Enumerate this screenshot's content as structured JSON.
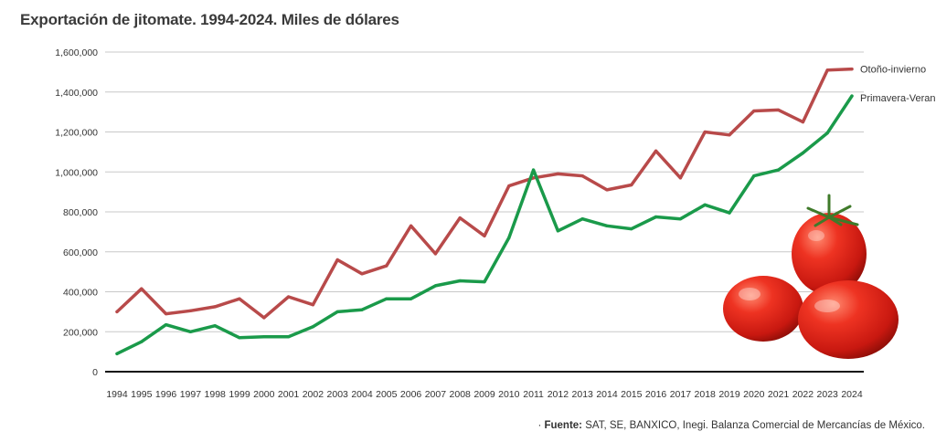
{
  "title": "Exportación de jitomate. 1994-2024. Miles de dólares",
  "source": {
    "bullet": "·",
    "label": "Fuente:",
    "text": "SAT, SE, BANXICO, Inegi. Balanza Comercial de Mercancías de México."
  },
  "chart_data": {
    "type": "line",
    "title": "Exportación de jitomate. 1994-2024. Miles de dólares",
    "x": [
      "1994",
      "1995",
      "1996",
      "1997",
      "1998",
      "1999",
      "2000",
      "2001",
      "2002",
      "2003",
      "2004",
      "2005",
      "2006",
      "2007",
      "2008",
      "2009",
      "2010",
      "2011",
      "2012",
      "2013",
      "2014",
      "2015",
      "2016",
      "2017",
      "2018",
      "2019",
      "2020",
      "2021",
      "2022",
      "2023",
      "2024"
    ],
    "ylim": [
      0,
      1600000
    ],
    "yticks": [
      0,
      200000,
      400000,
      600000,
      800000,
      1000000,
      1200000,
      1400000,
      1600000
    ],
    "ytick_labels": [
      "0",
      "200,000",
      "400,000",
      "600,000",
      "800,000",
      "1,000,000",
      "1,200,000",
      "1,400,000",
      "1,600,000"
    ],
    "grid": true,
    "legend_placement": "right, at line ends",
    "series": [
      {
        "name": "Otoño-invierno",
        "color": "#b84a4a",
        "values": [
          300000,
          415000,
          290000,
          305000,
          325000,
          365000,
          270000,
          375000,
          335000,
          560000,
          490000,
          530000,
          730000,
          590000,
          770000,
          680000,
          930000,
          970000,
          990000,
          980000,
          910000,
          935000,
          1105000,
          970000,
          1200000,
          1185000,
          1305000,
          1310000,
          1250000,
          1510000,
          1515000
        ]
      },
      {
        "name": "Primavera-Verano",
        "color": "#1a9a4a",
        "values": [
          90000,
          150000,
          235000,
          200000,
          230000,
          170000,
          175000,
          175000,
          225000,
          300000,
          310000,
          365000,
          365000,
          430000,
          455000,
          450000,
          670000,
          1010000,
          705000,
          765000,
          730000,
          715000,
          775000,
          765000,
          835000,
          795000,
          980000,
          1010000,
          1095000,
          1195000,
          1380000
        ]
      }
    ]
  }
}
